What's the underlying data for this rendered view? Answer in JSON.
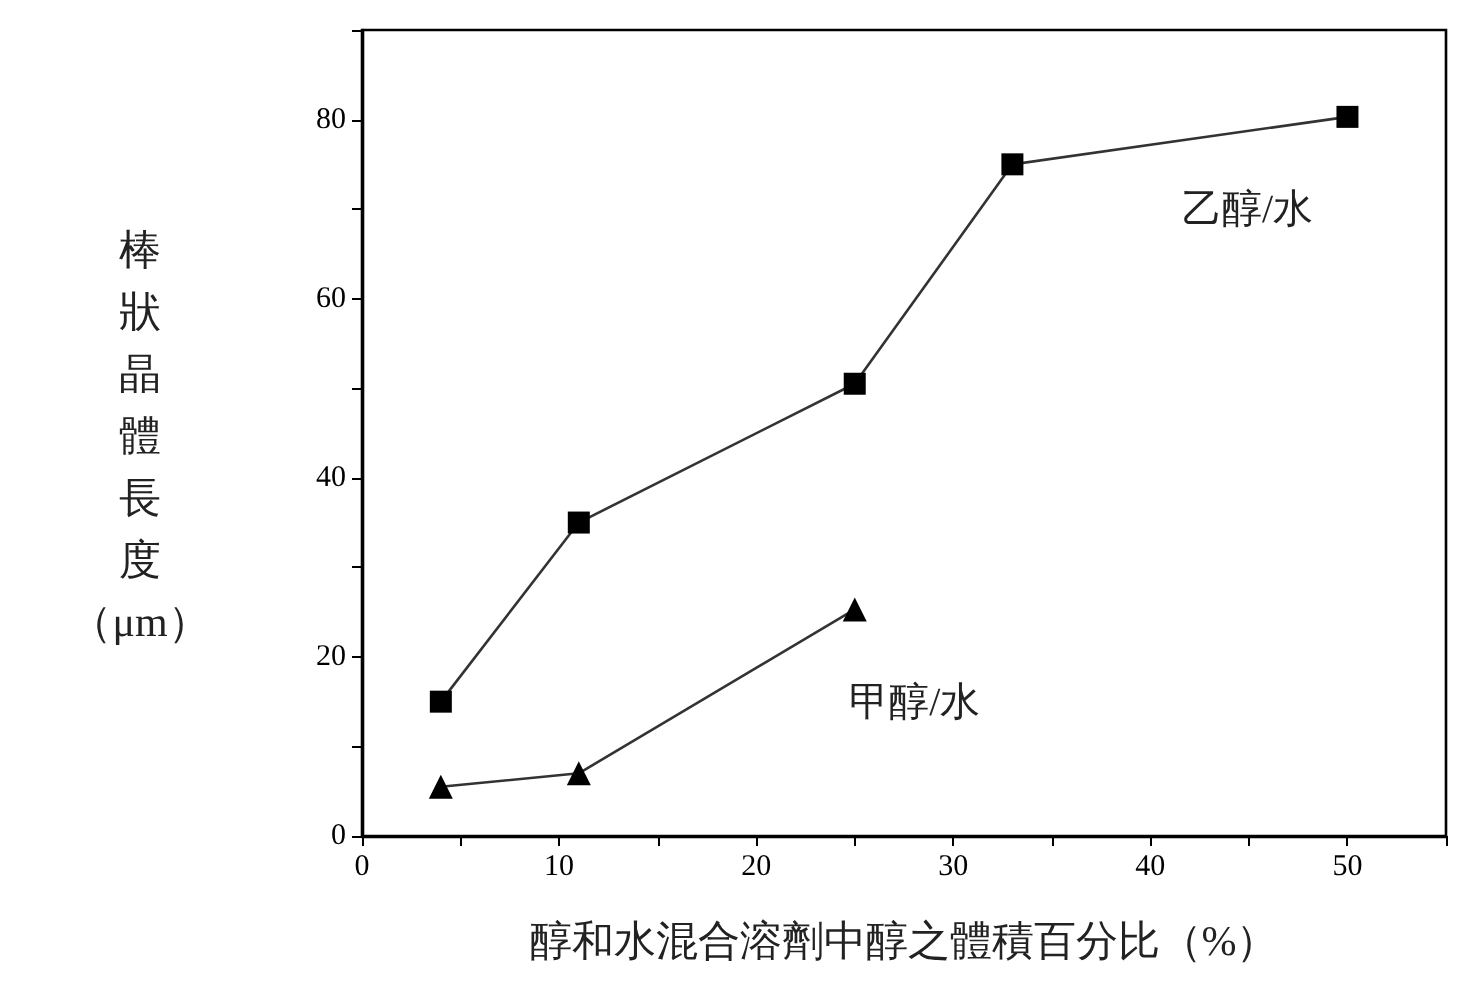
{
  "chart_data": {
    "type": "line",
    "xlabel": "醇和水混合溶劑中醇之體積百分比（%）",
    "ylabel": "棒狀晶體長度（μm）",
    "series": [
      {
        "name": "乙醇/水",
        "color": "#000000",
        "marker": "square",
        "x": [
          4,
          11,
          25,
          33,
          50
        ],
        "values": [
          15,
          35,
          50.5,
          75,
          80.3
        ]
      },
      {
        "name": "甲醇/水",
        "color": "#000000",
        "marker": "triangle",
        "x": [
          4,
          11,
          25
        ],
        "values": [
          5.5,
          7,
          25.3
        ]
      }
    ],
    "xlim": [
      0,
      55
    ],
    "xticks": [
      0,
      10,
      20,
      30,
      40,
      50
    ],
    "ylim": [
      0,
      90
    ],
    "yticks": [
      0,
      20,
      40,
      60,
      80
    ],
    "grid": false,
    "legend": false,
    "line_style": "solid"
  }
}
